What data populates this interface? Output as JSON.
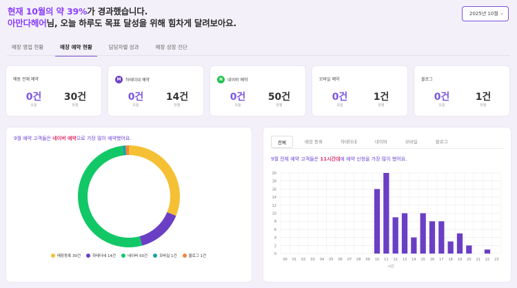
{
  "header": {
    "line1_prefix": "현재 10월의 약 39%",
    "line1_suffix": "가 경과했습니다.",
    "line2_name": "아만다헤어",
    "line2_suffix": "님, 오늘 하루도 목표 달성을 위해 힘차게 달려보아요."
  },
  "month_select": {
    "value": "2025년 10월"
  },
  "tabs": [
    {
      "label": "매장 영업 현황",
      "active": false
    },
    {
      "label": "매장 예약 현황",
      "active": true
    },
    {
      "label": "담당자별 성과",
      "active": false
    },
    {
      "label": "매장 성장 진단",
      "active": false
    }
  ],
  "kpi_cards": [
    {
      "title": "매장 전체 예약",
      "badge": "",
      "badge_color": "",
      "today": "0건",
      "today_label": "오늘",
      "month": "30건",
      "month_label": "당월"
    },
    {
      "title": "하테더네 예약",
      "badge": "M",
      "badge_color": "#6d3fc7",
      "today": "0건",
      "today_label": "오늘",
      "month": "14건",
      "month_label": "당월"
    },
    {
      "title": "네이버 예약",
      "badge": "N",
      "badge_color": "#1fc24a",
      "today": "0건",
      "today_label": "오늘",
      "month": "50건",
      "month_label": "당월"
    },
    {
      "title": "모바일 예약",
      "badge": "",
      "badge_color": "",
      "today": "0건",
      "today_label": "오늘",
      "month": "1건",
      "month_label": "당월"
    },
    {
      "title": "블로그",
      "badge": "",
      "badge_color": "",
      "today": "0건",
      "today_label": "오늘",
      "month": "1건",
      "month_label": "당월"
    }
  ],
  "left_panel": {
    "caption_prefix": "9월 예약 고객들은 ",
    "caption_highlight": "네이버 예약",
    "caption_suffix": "으로 가장 많이 예약했어요."
  },
  "right_panel": {
    "subtabs": [
      {
        "label": "전체",
        "active": true
      },
      {
        "label": "매장 등록",
        "active": false
      },
      {
        "label": "하테더네",
        "active": false
      },
      {
        "label": "네이버",
        "active": false
      },
      {
        "label": "모바일",
        "active": false
      },
      {
        "label": "블로그",
        "active": false
      }
    ],
    "caption_prefix": "9월 전체 예약 고객들은 ",
    "caption_highlight": "11시간대",
    "caption_suffix": "에 예약 신청을 가장 많이 했어요."
  },
  "chart_data": [
    {
      "type": "pie",
      "donut": true,
      "title": "",
      "series": [
        {
          "name": "매장등록 30건",
          "value": 30,
          "color": "#f5c033"
        },
        {
          "name": "하테더네 14건",
          "value": 14,
          "color": "#6a3fc4"
        },
        {
          "name": "네이버 50건",
          "value": 50,
          "color": "#12c866"
        },
        {
          "name": "모바일 1건",
          "value": 1,
          "color": "#17a3a3"
        },
        {
          "name": "블로그 1건",
          "value": 1,
          "color": "#f2843a"
        }
      ],
      "legend_position": "bottom"
    },
    {
      "type": "bar",
      "title": "",
      "xlabel": "시간",
      "ylabel": "",
      "categories": [
        "00",
        "01",
        "02",
        "03",
        "04",
        "05",
        "06",
        "07",
        "08",
        "09",
        "10",
        "11",
        "12",
        "13",
        "14",
        "15",
        "16",
        "17",
        "18",
        "19",
        "20",
        "21",
        "22",
        "23"
      ],
      "values": [
        0,
        0,
        0,
        0,
        0,
        0,
        0,
        0,
        0,
        0,
        16,
        20,
        9,
        10,
        4,
        10,
        8,
        8,
        3,
        5,
        2,
        0,
        1,
        0
      ],
      "ylim": [
        0,
        20
      ],
      "yticks": [
        0,
        2,
        4,
        6,
        8,
        10,
        12,
        14,
        16,
        18,
        20
      ],
      "color": "#6a3fc4",
      "grid": true
    }
  ]
}
